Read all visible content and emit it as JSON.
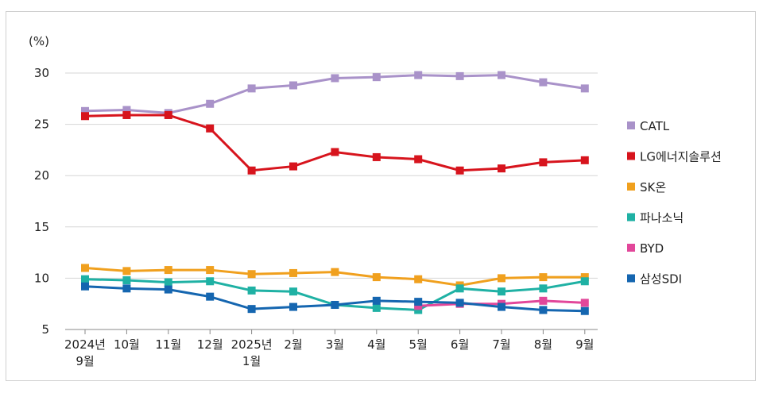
{
  "chart_data": {
    "type": "line",
    "ylabel": "(%)",
    "ylim": [
      5,
      30
    ],
    "yticks": [
      5,
      10,
      15,
      20,
      25,
      30
    ],
    "grid": "horizontal",
    "legend": "right",
    "categories": [
      [
        "2024년",
        "9월"
      ],
      [
        "10월"
      ],
      [
        "11월"
      ],
      [
        "12월"
      ],
      [
        "2025년",
        "1월"
      ],
      [
        "2월"
      ],
      [
        "3월"
      ],
      [
        "4월"
      ],
      [
        "5월"
      ],
      [
        "6월"
      ],
      [
        "7월"
      ],
      [
        "8월"
      ],
      [
        "9월"
      ]
    ],
    "series": [
      {
        "name": "CATL",
        "color": "#a992c9",
        "values": [
          26.3,
          26.4,
          26.1,
          27.0,
          28.5,
          28.8,
          29.5,
          29.6,
          29.8,
          29.7,
          29.8,
          29.1,
          28.5
        ]
      },
      {
        "name": "LG에너지솔루션",
        "color": "#d7141d",
        "values": [
          25.8,
          25.9,
          25.9,
          24.6,
          20.5,
          20.9,
          22.3,
          21.8,
          21.6,
          20.5,
          20.7,
          21.3,
          21.5
        ]
      },
      {
        "name": "SK온",
        "color": "#f0a01e",
        "values": [
          11.0,
          10.7,
          10.8,
          10.8,
          10.4,
          10.5,
          10.6,
          10.1,
          9.9,
          9.3,
          10.0,
          10.1,
          10.1
        ]
      },
      {
        "name": "파나소닉",
        "color": "#1fb1a4",
        "values": [
          9.9,
          9.8,
          9.6,
          9.7,
          8.8,
          8.7,
          7.4,
          7.1,
          6.9,
          9.0,
          8.7,
          9.0,
          9.7
        ]
      },
      {
        "name": "BYD",
        "color": "#e2479a",
        "values": [
          null,
          null,
          null,
          null,
          null,
          null,
          null,
          null,
          7.3,
          7.5,
          7.5,
          7.8,
          7.6
        ]
      },
      {
        "name": "삼성SDI",
        "color": "#1566b0",
        "values": [
          9.2,
          9.0,
          8.9,
          8.2,
          7.0,
          7.2,
          7.4,
          7.8,
          7.7,
          7.6,
          7.2,
          6.9,
          6.8
        ]
      }
    ]
  }
}
